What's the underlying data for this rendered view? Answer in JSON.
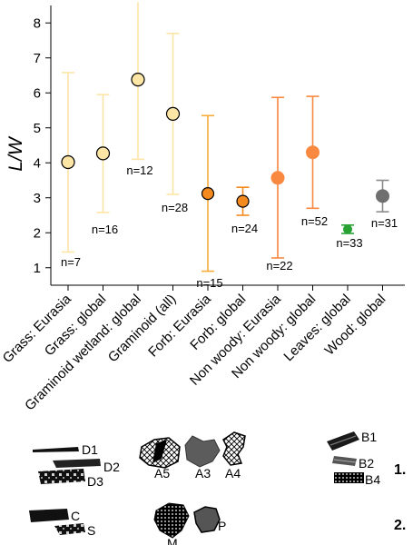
{
  "colors": {
    "light_yellow": "#fde5a6",
    "light_yellow_edge": "#f2c04c",
    "orange": "#f7ab3a",
    "dark_orange": "#f48a1d",
    "orange_red": "#f98941",
    "green": "#27a233",
    "gray": "#6f6f6f",
    "gray_err": "#8a8a8a",
    "axis": "#000000"
  },
  "chart_data": {
    "type": "scatter",
    "ylabel": "L/W",
    "ylim": [
      0.5,
      8.5
    ],
    "yticks": [
      "1",
      "2",
      "3",
      "4",
      "5",
      "6",
      "7",
      "8"
    ],
    "grid": false,
    "categories": [
      "Grass: Eurasia",
      "Grass: global",
      "Graminoid wetland: global",
      "Graminoid (all)",
      "Forb: Eurasia",
      "Forb: global",
      "Non woody: Eurasia",
      "Non woody: global",
      "Leaves: global",
      "Wood: global"
    ],
    "points": [
      {
        "category": "Grass: Eurasia",
        "mean": 4.02,
        "lower": 1.45,
        "upper": 6.58,
        "n_label": "n=7",
        "color": "light_yellow"
      },
      {
        "category": "Grass: global",
        "mean": 4.27,
        "lower": 2.58,
        "upper": 5.95,
        "n_label": "n=16",
        "color": "light_yellow"
      },
      {
        "category": "Graminoid wetland: global",
        "mean": 6.38,
        "lower": 4.1,
        "upper": 8.6,
        "n_label": "n=12",
        "color": "light_yellow"
      },
      {
        "category": "Graminoid (all)",
        "mean": 5.4,
        "lower": 3.1,
        "upper": 7.7,
        "n_label": "n=28",
        "color": "light_yellow"
      },
      {
        "category": "Forb: Eurasia",
        "mean": 3.12,
        "lower": 0.9,
        "upper": 5.35,
        "n_label": "n=15",
        "color": "orange"
      },
      {
        "category": "Forb: global",
        "mean": 2.9,
        "lower": 2.5,
        "upper": 3.3,
        "n_label": "n=24",
        "color": "dark_orange"
      },
      {
        "category": "Non woody: Eurasia",
        "mean": 3.57,
        "lower": 1.28,
        "upper": 5.87,
        "n_label": "n=22",
        "color": "orange_red"
      },
      {
        "category": "Non woody: global",
        "mean": 4.3,
        "lower": 2.7,
        "upper": 5.9,
        "n_label": "n=52",
        "color": "orange_red"
      },
      {
        "category": "Leaves: global",
        "mean": 2.1,
        "lower": 1.98,
        "upper": 2.22,
        "n_label": "n=33",
        "color": "green"
      },
      {
        "category": "Wood: global",
        "mean": 3.05,
        "lower": 2.6,
        "upper": 3.5,
        "n_label": "n=31",
        "color": "gray"
      }
    ]
  },
  "shapes": {
    "labels": {
      "D1": "D1",
      "D2": "D2",
      "D3": "D3",
      "A5": "A5",
      "A3": "A3",
      "A4": "A4",
      "B1": "B1",
      "B2": "B2",
      "B4": "B4",
      "C": "C",
      "S": "S",
      "M": "M",
      "P": "P"
    },
    "row_labels": {
      "row1": "1.",
      "row2": "2."
    }
  }
}
